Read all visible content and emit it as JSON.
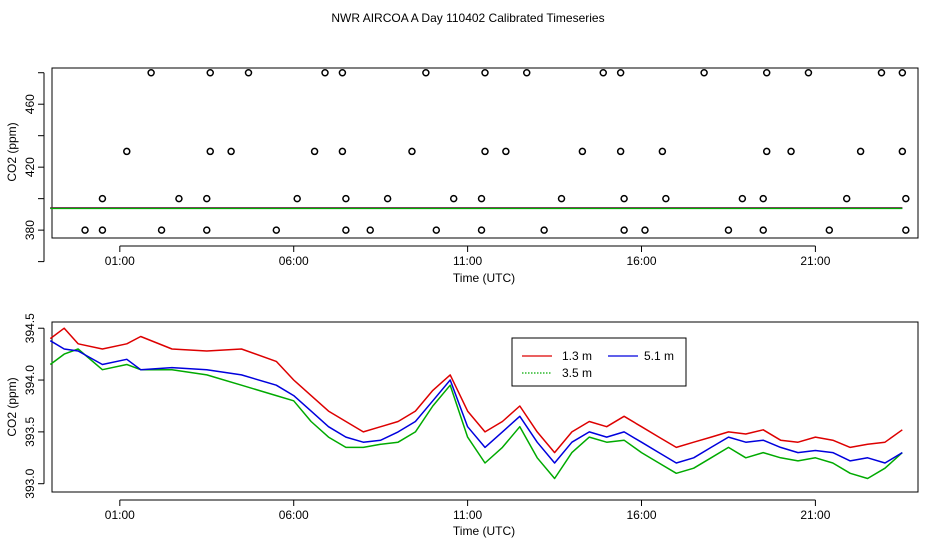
{
  "title": "NWR AIRCOA A  Day 110402  Calibrated Timeseries",
  "chart_data": [
    {
      "type": "scatter",
      "xlabel": "Time (UTC)",
      "ylabel": "CO2 (ppm)",
      "x_ticks": [
        "01:00",
        "06:00",
        "11:00",
        "16:00",
        "21:00"
      ],
      "x_tick_hours": [
        1,
        6,
        11,
        16,
        21
      ],
      "xlim": [
        -0.95,
        23.95
      ],
      "y_ticks": [
        360,
        380,
        400,
        420,
        440,
        460,
        480
      ],
      "y_tick_labels": [
        "380",
        "420",
        "460"
      ],
      "y_tick_label_values": [
        380,
        420,
        460
      ],
      "ylim": [
        375,
        483
      ],
      "points_color": "#000000",
      "points": [
        [
          0.5,
          380
        ],
        [
          1.9,
          480
        ],
        [
          3.6,
          480
        ],
        [
          4.7,
          480
        ],
        [
          6.9,
          480
        ],
        [
          7.4,
          480
        ],
        [
          9.8,
          480
        ],
        [
          11.5,
          480
        ],
        [
          12.7,
          480
        ],
        [
          14.9,
          480
        ],
        [
          15.4,
          480
        ],
        [
          17.8,
          480
        ],
        [
          19.6,
          480
        ],
        [
          20.8,
          480
        ],
        [
          22.9,
          480
        ],
        [
          23.5,
          480
        ],
        [
          1.2,
          430
        ],
        [
          3.6,
          430
        ],
        [
          4.2,
          430
        ],
        [
          6.6,
          430
        ],
        [
          7.4,
          430
        ],
        [
          9.4,
          430
        ],
        [
          11.5,
          430
        ],
        [
          12.1,
          430
        ],
        [
          14.3,
          430
        ],
        [
          15.4,
          430
        ],
        [
          16.6,
          430
        ],
        [
          19.6,
          430
        ],
        [
          20.3,
          430
        ],
        [
          22.3,
          430
        ],
        [
          23.5,
          430
        ],
        [
          0.5,
          400
        ],
        [
          2.7,
          400
        ],
        [
          3.5,
          400
        ],
        [
          6.1,
          400
        ],
        [
          7.5,
          400
        ],
        [
          8.7,
          400
        ],
        [
          10.6,
          400
        ],
        [
          11.4,
          400
        ],
        [
          13.7,
          400
        ],
        [
          15.5,
          400
        ],
        [
          16.7,
          400
        ],
        [
          18.9,
          400
        ],
        [
          19.5,
          400
        ],
        [
          21.9,
          400
        ],
        [
          23.6,
          400
        ],
        [
          0.0,
          380
        ],
        [
          2.2,
          380
        ],
        [
          3.5,
          380
        ],
        [
          5.5,
          380
        ],
        [
          7.5,
          380
        ],
        [
          8.2,
          380
        ],
        [
          10.1,
          380
        ],
        [
          11.4,
          380
        ],
        [
          13.2,
          380
        ],
        [
          15.5,
          380
        ],
        [
          16.1,
          380
        ],
        [
          18.5,
          380
        ],
        [
          19.5,
          380
        ],
        [
          21.4,
          380
        ],
        [
          23.6,
          380
        ]
      ],
      "line_level": 394,
      "line_range": [
        -1,
        23.5
      ]
    },
    {
      "type": "line",
      "xlabel": "Time (UTC)",
      "ylabel": "CO2 (ppm)",
      "x_ticks": [
        "01:00",
        "06:00",
        "11:00",
        "16:00",
        "21:00"
      ],
      "x_tick_hours": [
        1,
        6,
        11,
        16,
        21
      ],
      "xlim": [
        -0.95,
        23.95
      ],
      "y_ticks": [
        "393.0",
        "393.5",
        "394.0",
        "394.5"
      ],
      "y_tick_values": [
        393.0,
        393.5,
        394.0,
        394.5
      ],
      "ylim": [
        392.92,
        394.56
      ],
      "legend_position": "top-center",
      "series": [
        {
          "name": "1.3 m",
          "color": "#dd0000",
          "points": [
            [
              -1.0,
              394.4
            ],
            [
              -0.6,
              394.5
            ],
            [
              -0.2,
              394.35
            ],
            [
              0.5,
              394.3
            ],
            [
              1.2,
              394.35
            ],
            [
              1.6,
              394.42
            ],
            [
              2.5,
              394.3
            ],
            [
              3.5,
              394.28
            ],
            [
              4.5,
              394.3
            ],
            [
              5.5,
              394.18
            ],
            [
              6.0,
              394.0
            ],
            [
              6.5,
              393.85
            ],
            [
              7.0,
              393.7
            ],
            [
              7.5,
              393.6
            ],
            [
              8.0,
              393.5
            ],
            [
              8.5,
              393.55
            ],
            [
              9.0,
              393.6
            ],
            [
              9.5,
              393.7
            ],
            [
              10.0,
              393.9
            ],
            [
              10.5,
              394.05
            ],
            [
              11.0,
              393.7
            ],
            [
              11.5,
              393.5
            ],
            [
              12.0,
              393.6
            ],
            [
              12.5,
              393.75
            ],
            [
              13.0,
              393.5
            ],
            [
              13.5,
              393.3
            ],
            [
              14.0,
              393.5
            ],
            [
              14.5,
              393.6
            ],
            [
              15.0,
              393.55
            ],
            [
              15.5,
              393.65
            ],
            [
              16.0,
              393.55
            ],
            [
              16.5,
              393.45
            ],
            [
              17.0,
              393.35
            ],
            [
              17.5,
              393.4
            ],
            [
              18.0,
              393.45
            ],
            [
              18.5,
              393.5
            ],
            [
              19.0,
              393.48
            ],
            [
              19.5,
              393.52
            ],
            [
              20.0,
              393.42
            ],
            [
              20.5,
              393.4
            ],
            [
              21.0,
              393.45
            ],
            [
              21.5,
              393.42
            ],
            [
              22.0,
              393.35
            ],
            [
              22.5,
              393.38
            ],
            [
              23.0,
              393.4
            ],
            [
              23.5,
              393.52
            ]
          ]
        },
        {
          "name": "5.1 m",
          "color": "#0000dd",
          "points": [
            [
              -1.0,
              394.38
            ],
            [
              -0.6,
              394.3
            ],
            [
              -0.2,
              394.28
            ],
            [
              0.5,
              394.15
            ],
            [
              1.2,
              394.2
            ],
            [
              1.6,
              394.1
            ],
            [
              2.5,
              394.12
            ],
            [
              3.5,
              394.1
            ],
            [
              4.5,
              394.05
            ],
            [
              5.5,
              393.95
            ],
            [
              6.0,
              393.85
            ],
            [
              6.5,
              393.7
            ],
            [
              7.0,
              393.55
            ],
            [
              7.5,
              393.45
            ],
            [
              8.0,
              393.4
            ],
            [
              8.5,
              393.42
            ],
            [
              9.0,
              393.5
            ],
            [
              9.5,
              393.6
            ],
            [
              10.0,
              393.8
            ],
            [
              10.5,
              394.0
            ],
            [
              11.0,
              393.55
            ],
            [
              11.5,
              393.35
            ],
            [
              12.0,
              393.5
            ],
            [
              12.5,
              393.65
            ],
            [
              13.0,
              393.4
            ],
            [
              13.5,
              393.2
            ],
            [
              14.0,
              393.4
            ],
            [
              14.5,
              393.5
            ],
            [
              15.0,
              393.45
            ],
            [
              15.5,
              393.5
            ],
            [
              16.0,
              393.4
            ],
            [
              16.5,
              393.3
            ],
            [
              17.0,
              393.2
            ],
            [
              17.5,
              393.25
            ],
            [
              18.0,
              393.35
            ],
            [
              18.5,
              393.45
            ],
            [
              19.0,
              393.4
            ],
            [
              19.5,
              393.42
            ],
            [
              20.0,
              393.35
            ],
            [
              20.5,
              393.3
            ],
            [
              21.0,
              393.32
            ],
            [
              21.5,
              393.3
            ],
            [
              22.0,
              393.22
            ],
            [
              22.5,
              393.25
            ],
            [
              23.0,
              393.2
            ],
            [
              23.5,
              393.3
            ]
          ]
        },
        {
          "name": "3.5 m",
          "color": "#00aa00",
          "points": [
            [
              -1.0,
              394.15
            ],
            [
              -0.6,
              394.25
            ],
            [
              -0.2,
              394.3
            ],
            [
              0.5,
              394.1
            ],
            [
              1.2,
              394.15
            ],
            [
              1.6,
              394.1
            ],
            [
              2.5,
              394.1
            ],
            [
              3.5,
              394.05
            ],
            [
              4.5,
              393.95
            ],
            [
              5.5,
              393.85
            ],
            [
              6.0,
              393.8
            ],
            [
              6.5,
              393.6
            ],
            [
              7.0,
              393.45
            ],
            [
              7.5,
              393.35
            ],
            [
              8.0,
              393.35
            ],
            [
              8.5,
              393.38
            ],
            [
              9.0,
              393.4
            ],
            [
              9.5,
              393.5
            ],
            [
              10.0,
              393.75
            ],
            [
              10.5,
              393.95
            ],
            [
              11.0,
              393.45
            ],
            [
              11.5,
              393.2
            ],
            [
              12.0,
              393.35
            ],
            [
              12.5,
              393.55
            ],
            [
              13.0,
              393.25
            ],
            [
              13.5,
              393.05
            ],
            [
              14.0,
              393.3
            ],
            [
              14.5,
              393.45
            ],
            [
              15.0,
              393.4
            ],
            [
              15.5,
              393.42
            ],
            [
              16.0,
              393.3
            ],
            [
              16.5,
              393.2
            ],
            [
              17.0,
              393.1
            ],
            [
              17.5,
              393.15
            ],
            [
              18.0,
              393.25
            ],
            [
              18.5,
              393.35
            ],
            [
              19.0,
              393.25
            ],
            [
              19.5,
              393.3
            ],
            [
              20.0,
              393.25
            ],
            [
              20.5,
              393.22
            ],
            [
              21.0,
              393.25
            ],
            [
              21.5,
              393.2
            ],
            [
              22.0,
              393.1
            ],
            [
              22.5,
              393.05
            ],
            [
              23.0,
              393.15
            ],
            [
              23.5,
              393.3
            ]
          ]
        }
      ]
    }
  ]
}
